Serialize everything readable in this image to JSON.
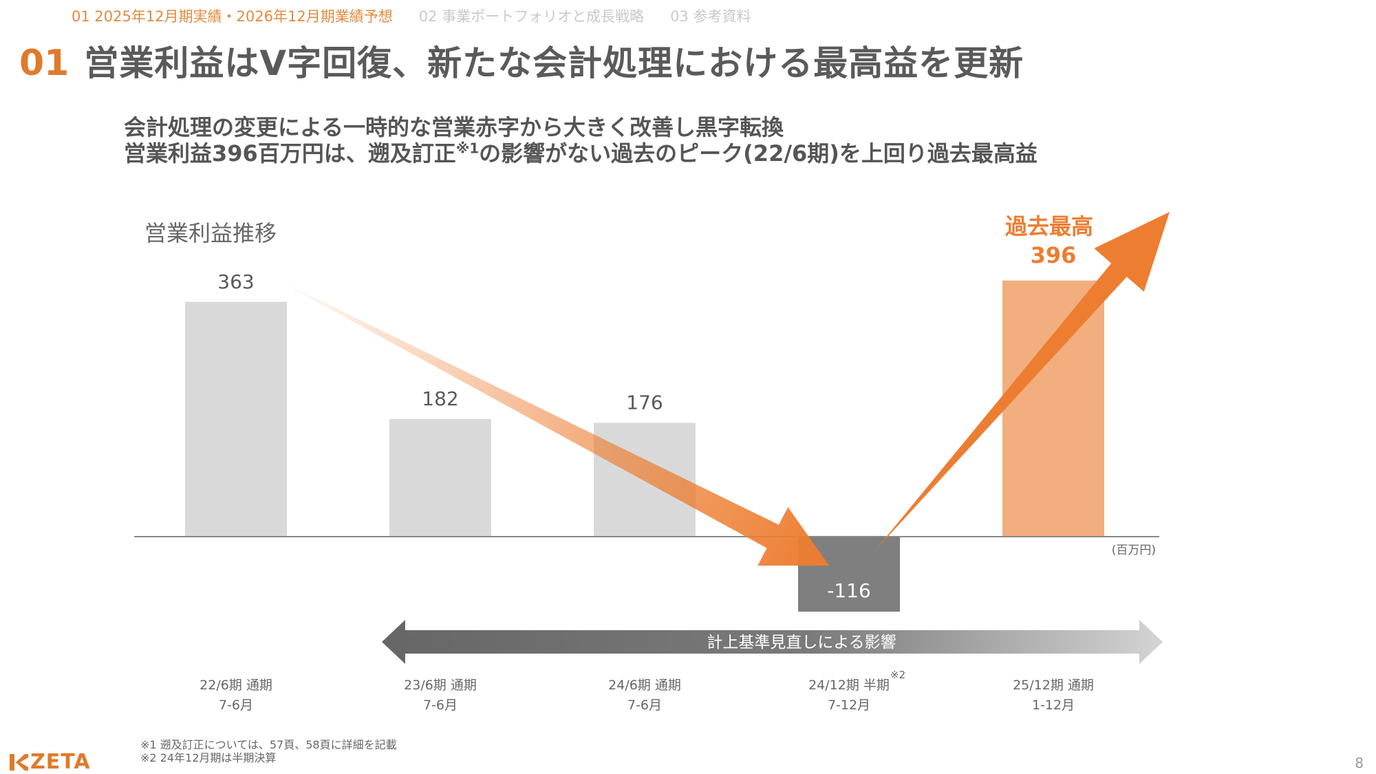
{
  "nav": {
    "items": [
      {
        "label": "01 2025年12月期実績・2026年12月期業績予想"
      },
      {
        "label": "02 事業ポートフォリオと成長戦略"
      },
      {
        "label": "03 参考資料"
      }
    ]
  },
  "heading": {
    "number": "01",
    "title": "営業利益はV字回復、新たな会計処理における最高益を更新"
  },
  "subtitle": {
    "line1": "会計処理の変更による一時的な営業赤字から大きく改善し黒字転換",
    "line2_before": "営業利益396百万円は、遡及訂正",
    "line2_note": "※1",
    "line2_after": "の影響がない過去のピーク(22/6期)を上回り過去最高益"
  },
  "chart_data": {
    "type": "bar",
    "title": "営業利益推移",
    "unit": "(百万円)",
    "categories": [
      {
        "period": "22/6期 通期",
        "months": "7-6月",
        "note": ""
      },
      {
        "period": "23/6期 通期",
        "months": "7-6月",
        "note": ""
      },
      {
        "period": "24/6期 通期",
        "months": "7-6月",
        "note": ""
      },
      {
        "period": "24/12期 半期",
        "months": "7-12月",
        "note": "※2"
      },
      {
        "period": "25/12期 通期",
        "months": "1-12月",
        "note": ""
      }
    ],
    "values": [
      363,
      182,
      176,
      -116,
      396
    ],
    "ylim": [
      -116,
      396
    ],
    "highlight_label": "過去最高",
    "range_arrow_label": "計上基準見直しによる影響",
    "colors": {
      "bar": "#d9d9d9",
      "negative_bar": "#7f7f7f",
      "highlight_bar": "#f2ae7e",
      "accent": "#ed7d31",
      "label": "#595959",
      "axis": "#888888"
    }
  },
  "footnotes": [
    "※1 遡及訂正については、57頁、58頁に詳細を記載",
    "※2 24年12月期は半期決算"
  ],
  "logo": {
    "text": "ZETA"
  },
  "page_number": "8"
}
